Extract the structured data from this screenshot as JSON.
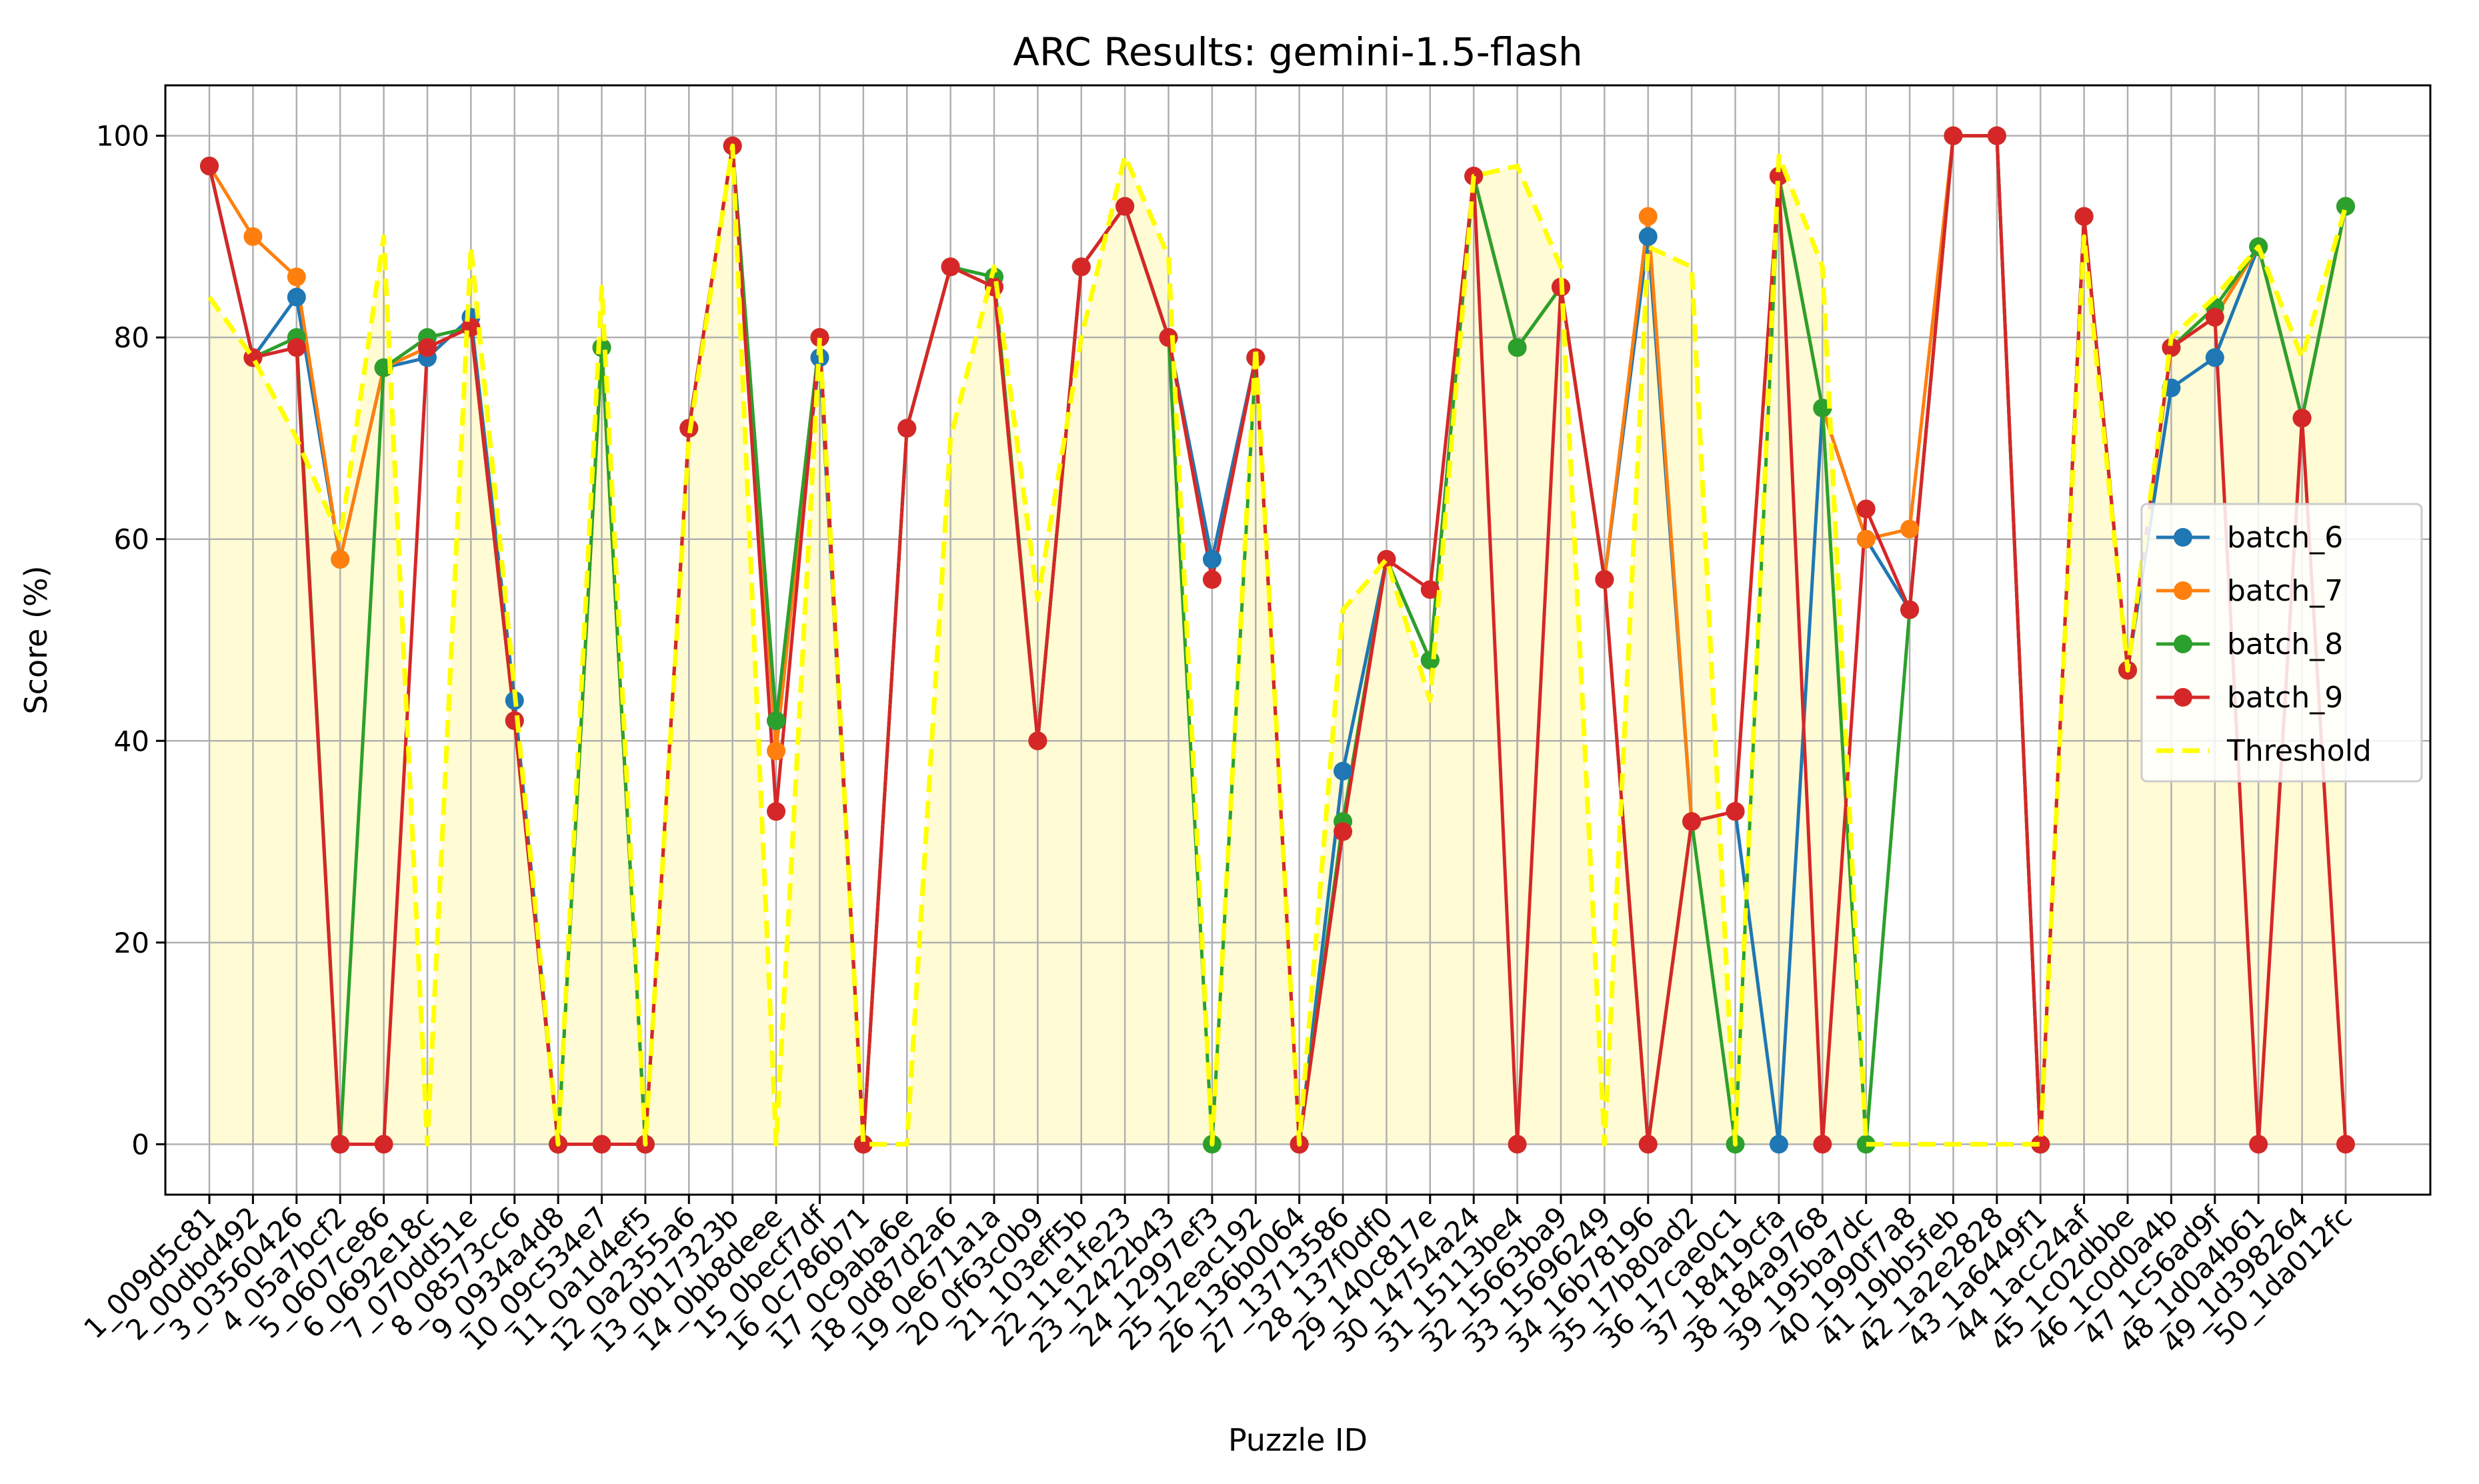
{
  "chart_data": {
    "type": "line",
    "title": "ARC Results: gemini-1.5-flash",
    "xlabel": "Puzzle ID",
    "ylabel": "Score (%)",
    "ylim": [
      -5,
      105
    ],
    "yticks": [
      0,
      20,
      40,
      60,
      80,
      100
    ],
    "grid": true,
    "legend_position": "center-right",
    "categories": [
      "1_009d5c81",
      "2_00dbd492",
      "3_03560426",
      "4_05a7bcf2",
      "5_0607ce86",
      "6_0692e18c",
      "7_070dd51e",
      "8_08573cc6",
      "9_0934a4d8",
      "10_09c534e7",
      "11_0a1d4ef5",
      "12_0a2355a6",
      "13_0b17323b",
      "14_0bb8deee",
      "15_0becf7df",
      "16_0c786b71",
      "17_0c9aba6e",
      "18_0d87d2a6",
      "19_0e671a1a",
      "20_0f63c0b9",
      "21_103eff5b",
      "22_11e1fe23",
      "23_12422b43",
      "24_12997ef3",
      "25_12eac192",
      "26_136b0064",
      "27_13713586",
      "28_137f0df0",
      "29_140c817e",
      "30_14754a24",
      "31_15113be4",
      "32_15663ba9",
      "33_15696249",
      "34_16b78196",
      "35_17b80ad2",
      "36_17cae0c1",
      "37_18419cfa",
      "38_184a9768",
      "39_195ba7dc",
      "40_1990f7a8",
      "41_19bb5feb",
      "42_1a2e2828",
      "43_1a6449f1",
      "44_1acc24af",
      "45_1c02dbbe",
      "46_1c0d0a4b",
      "47_1c56ad9f",
      "48_1d0a4b61",
      "49_1d398264",
      "50_1da012fc"
    ],
    "series": [
      {
        "name": "batch_6",
        "color": "#1f77b4",
        "values": [
          97,
          78,
          84,
          58,
          77,
          78,
          82,
          44,
          0,
          79,
          0,
          71,
          99,
          42,
          78,
          0,
          71,
          87,
          86,
          40,
          87,
          93,
          80,
          58,
          78,
          0,
          37,
          58,
          48,
          96,
          79,
          85,
          56,
          90,
          32,
          33,
          0,
          73,
          60,
          53,
          100,
          100,
          0,
          92,
          47,
          75,
          78,
          89,
          72,
          93
        ]
      },
      {
        "name": "batch_7",
        "color": "#ff7f0e",
        "values": [
          97,
          90,
          86,
          58,
          77,
          79,
          81,
          42,
          0,
          79,
          0,
          71,
          99,
          39,
          80,
          0,
          71,
          87,
          85,
          40,
          87,
          93,
          80,
          56,
          78,
          0,
          32,
          58,
          48,
          96,
          79,
          85,
          56,
          92,
          32,
          33,
          96,
          73,
          60,
          61,
          100,
          100,
          0,
          92,
          47,
          79,
          82,
          89,
          72,
          93
        ]
      },
      {
        "name": "batch_8",
        "color": "#2ca02c",
        "values": [
          97,
          78,
          80,
          0,
          77,
          80,
          81,
          42,
          0,
          79,
          0,
          71,
          99,
          42,
          80,
          0,
          71,
          87,
          86,
          40,
          87,
          93,
          80,
          0,
          78,
          0,
          32,
          58,
          48,
          96,
          79,
          85,
          56,
          0,
          32,
          0,
          96,
          73,
          0,
          53,
          100,
          100,
          0,
          92,
          47,
          79,
          83,
          89,
          72,
          93
        ]
      },
      {
        "name": "batch_9",
        "color": "#d62728",
        "values": [
          97,
          78,
          79,
          0,
          0,
          79,
          81,
          42,
          0,
          0,
          0,
          71,
          99,
          33,
          80,
          0,
          71,
          87,
          85,
          40,
          87,
          93,
          80,
          56,
          78,
          0,
          31,
          58,
          55,
          96,
          0,
          85,
          56,
          0,
          32,
          33,
          96,
          0,
          63,
          53,
          100,
          100,
          0,
          92,
          47,
          79,
          82,
          0,
          72,
          0
        ]
      },
      {
        "name": "Threshold",
        "color": "#ffff00",
        "dashed": true,
        "values": [
          84,
          78,
          70,
          60,
          90,
          0,
          89,
          45,
          0,
          85,
          0,
          70,
          99,
          0,
          80,
          0,
          0,
          70,
          87,
          54,
          80,
          98,
          88,
          0,
          79,
          0,
          53,
          58,
          44,
          96,
          97,
          87,
          0,
          89,
          87,
          0,
          98,
          87,
          0,
          0,
          0,
          0,
          0,
          90,
          47,
          80,
          84,
          89,
          78,
          93
        ]
      }
    ]
  }
}
